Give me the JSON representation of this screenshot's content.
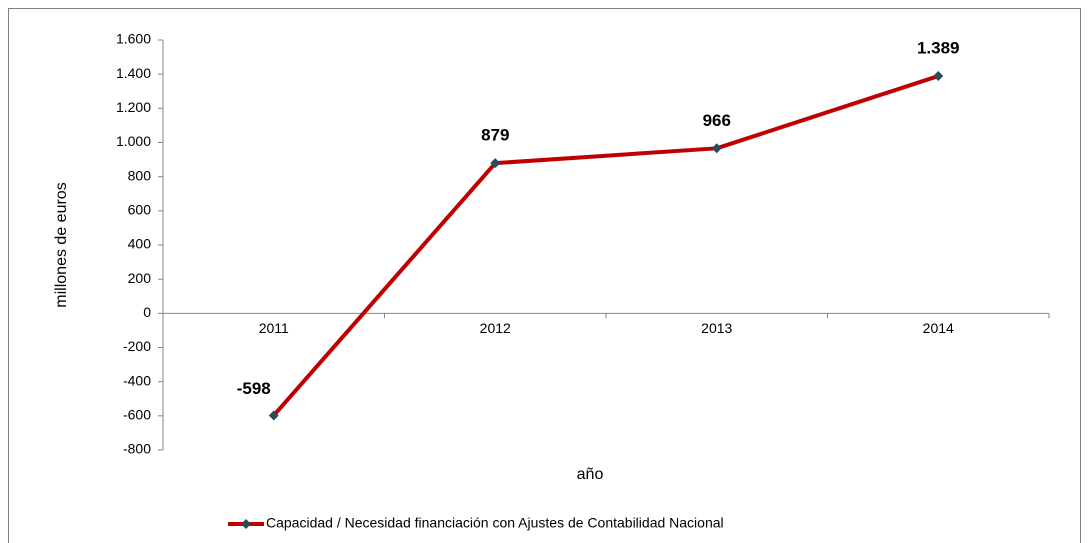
{
  "chart_data": {
    "type": "line",
    "categories": [
      "2011",
      "2012",
      "2013",
      "2014"
    ],
    "series": [
      {
        "name": "Capacidad / Necesidad financiación con Ajustes de Contabilidad Nacional",
        "color": "#c00000",
        "marker_color": "#2e4a5a",
        "values": [
          -598,
          879,
          966,
          1389
        ],
        "value_labels": [
          "-598",
          "879",
          "966",
          "1.389"
        ]
      }
    ],
    "y_label": "millones de euros",
    "x_label": "año",
    "ylim": [
      -800,
      1600
    ],
    "yticks": [
      -800,
      -600,
      -400,
      -200,
      0,
      200,
      400,
      600,
      800,
      {
        "value": 1000,
        "label": "1.000"
      },
      {
        "value": 1200,
        "label": "1.200"
      },
      {
        "value": 1400,
        "label": "1.400"
      },
      {
        "value": 1600,
        "label": "1.600"
      }
    ],
    "legend": "bottom"
  }
}
